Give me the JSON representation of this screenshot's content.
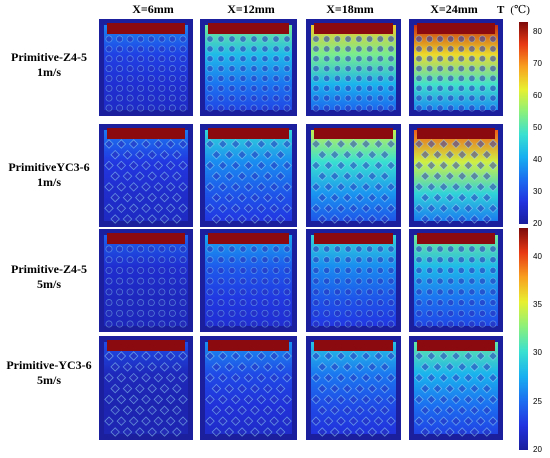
{
  "columns": [
    "X=6mm",
    "X=12mm",
    "X=18mm",
    "X=24mm"
  ],
  "rows": [
    {
      "line1": "Primitive-Z4-5",
      "line2": "1m/s",
      "pattern": "aligned",
      "levels": [
        0.16,
        0.42,
        0.62,
        0.82
      ],
      "scale": "top"
    },
    {
      "line1": "PrimitiveYC3-6",
      "line2": "1m/s",
      "pattern": "staggered",
      "levels": [
        0.14,
        0.32,
        0.52,
        0.75
      ],
      "scale": "top"
    },
    {
      "line1": "Primitive-Z4-5",
      "line2": "5m/s",
      "pattern": "aligned",
      "levels": [
        0.1,
        0.22,
        0.32,
        0.42
      ],
      "scale": "bottom"
    },
    {
      "line1": "Primitive-YC3-6",
      "line2": "5m/s",
      "pattern": "staggered",
      "levels": [
        0.06,
        0.18,
        0.28,
        0.4
      ],
      "scale": "bottom"
    }
  ],
  "colorbar_top": {
    "title": "T",
    "unit": "(℃)",
    "ticks": [
      "80",
      "70",
      "60",
      "50",
      "40",
      "30",
      "20"
    ],
    "range": [
      20,
      83
    ]
  },
  "colorbar_bottom": {
    "ticks": [
      "40",
      "35",
      "30",
      "25",
      "20"
    ],
    "range": [
      20,
      43
    ]
  },
  "colormap": [
    "#1a1e9c",
    "#2233e0",
    "#1c6ef0",
    "#18b0f0",
    "#3ae0d0",
    "#8cf07a",
    "#e8f030",
    "#f8a020",
    "#e83a14",
    "#7c0a0a"
  ]
}
